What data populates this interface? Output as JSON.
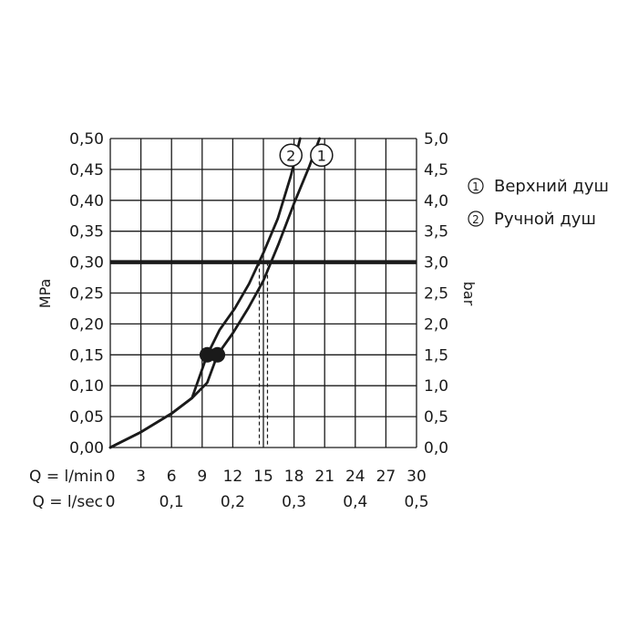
{
  "chart_data": {
    "type": "line",
    "xlabel_flow": "Q = l/min",
    "xlabel_sec": "Q = l/sec",
    "ylabel_left": "MPa",
    "ylabel_right": "bar",
    "x_ticks_lmin": [
      "0",
      "3",
      "6",
      "9",
      "12",
      "15",
      "18",
      "21",
      "24",
      "27",
      "30"
    ],
    "x_ticks_lsec": [
      "0",
      "0,1",
      "0,2",
      "0,3",
      "0,4",
      "0,5"
    ],
    "x_ticks_lsec_values": [
      0,
      6,
      12,
      18,
      24,
      30
    ],
    "y_ticks_left": [
      "0,00",
      "0,05",
      "0,10",
      "0,15",
      "0,20",
      "0,25",
      "0,30",
      "0,35",
      "0,40",
      "0,45",
      "0,50"
    ],
    "y_ticks_right": [
      "0,0",
      "0,5",
      "1,0",
      "1,5",
      "2,0",
      "2,5",
      "3,0",
      "3,5",
      "4,0",
      "4,5",
      "5,0"
    ],
    "xlim": [
      0,
      30
    ],
    "ylim": [
      0,
      0.5
    ],
    "grid": true,
    "reference_line": {
      "y": 0.3
    },
    "dashed_markers": [
      {
        "x": 14.6,
        "series": "2"
      },
      {
        "x": 15.4,
        "series": "1"
      }
    ],
    "series": [
      {
        "name": "1",
        "x": [
          0,
          3,
          6,
          8,
          9.5,
          10.5,
          12,
          13.5,
          15,
          16.5,
          18,
          19.5,
          20.5
        ],
        "y": [
          0,
          0.025,
          0.055,
          0.08,
          0.105,
          0.15,
          0.185,
          0.225,
          0.27,
          0.33,
          0.395,
          0.455,
          0.5
        ],
        "dot": {
          "x": 10.5,
          "y": 0.15
        },
        "label_pos": {
          "x": 20.7,
          "y": 0.473
        }
      },
      {
        "name": "2",
        "x": [
          0,
          3,
          6,
          8,
          9.5,
          10.7,
          12.2,
          13.6,
          15,
          16.4,
          17.7,
          18.6
        ],
        "y": [
          0,
          0.025,
          0.055,
          0.08,
          0.15,
          0.19,
          0.225,
          0.265,
          0.315,
          0.37,
          0.44,
          0.5
        ],
        "dot": {
          "x": 9.5,
          "y": 0.15
        },
        "label_pos": {
          "x": 17.7,
          "y": 0.473
        }
      }
    ]
  },
  "legend": [
    {
      "symbol": "1",
      "label": "Верхний душ"
    },
    {
      "symbol": "2",
      "label": "Ручной душ"
    }
  ]
}
